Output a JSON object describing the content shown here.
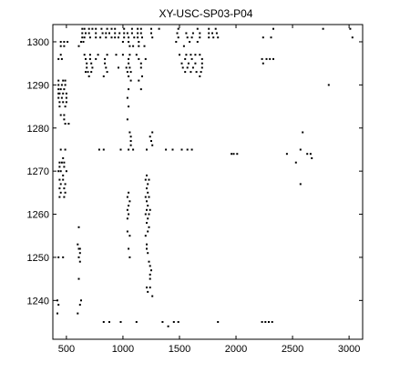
{
  "chart_data": {
    "type": "scatter",
    "title": "XY-USC-SP03-P04",
    "xlabel": "",
    "ylabel": "",
    "xlim": [
      380,
      3120
    ],
    "ylim": [
      1231,
      1304
    ],
    "grid": false,
    "marker_color": "#000000",
    "x_ticks": [
      500,
      1000,
      1500,
      2000,
      2500,
      3000
    ],
    "y_ticks": [
      1240,
      1250,
      1260,
      1270,
      1280,
      1290,
      1300
    ],
    "x_tick_labels": [
      "500",
      "1000",
      "1500",
      "2000",
      "2500",
      "3000"
    ],
    "y_tick_labels": [
      "1240",
      "1250",
      "1260",
      "1270",
      "1280",
      "1290",
      "1300"
    ],
    "points": [
      [
        640,
        1303
      ],
      [
        660,
        1303
      ],
      [
        700,
        1303
      ],
      [
        730,
        1303
      ],
      [
        760,
        1303
      ],
      [
        810,
        1303
      ],
      [
        860,
        1303
      ],
      [
        900,
        1303
      ],
      [
        930,
        1303
      ],
      [
        1010,
        1303
      ],
      [
        1080,
        1303
      ],
      [
        1130,
        1303
      ],
      [
        1160,
        1303
      ],
      [
        1250,
        1303
      ],
      [
        1320,
        1303
      ],
      [
        1490,
        1303
      ],
      [
        1660,
        1303
      ],
      [
        1760,
        1303
      ],
      [
        1820,
        1303
      ],
      [
        2330,
        1303
      ],
      [
        2770,
        1303
      ],
      [
        3010,
        1303
      ],
      [
        640,
        1302
      ],
      [
        670,
        1302
      ],
      [
        700,
        1302
      ],
      [
        760,
        1302
      ],
      [
        820,
        1302
      ],
      [
        850,
        1302
      ],
      [
        880,
        1302
      ],
      [
        930,
        1302
      ],
      [
        970,
        1302
      ],
      [
        1010,
        1302
      ],
      [
        1040,
        1302
      ],
      [
        1080,
        1302
      ],
      [
        1130,
        1302
      ],
      [
        1160,
        1302
      ],
      [
        1250,
        1302
      ],
      [
        1480,
        1302
      ],
      [
        1560,
        1302
      ],
      [
        1620,
        1302
      ],
      [
        1680,
        1302
      ],
      [
        1760,
        1302
      ],
      [
        1790,
        1302
      ],
      [
        1830,
        1302
      ],
      [
        640,
        1301
      ],
      [
        660,
        1301
      ],
      [
        710,
        1301
      ],
      [
        760,
        1301
      ],
      [
        800,
        1301
      ],
      [
        850,
        1301
      ],
      [
        900,
        1301
      ],
      [
        930,
        1301
      ],
      [
        960,
        1301
      ],
      [
        1010,
        1301
      ],
      [
        1050,
        1301
      ],
      [
        1100,
        1301
      ],
      [
        1130,
        1301
      ],
      [
        1170,
        1301
      ],
      [
        1260,
        1301
      ],
      [
        1490,
        1301
      ],
      [
        1570,
        1301
      ],
      [
        1610,
        1301
      ],
      [
        1680,
        1301
      ],
      [
        1760,
        1301
      ],
      [
        1800,
        1301
      ],
      [
        1840,
        1301
      ],
      [
        2240,
        1301
      ],
      [
        2310,
        1301
      ],
      [
        3030,
        1301
      ],
      [
        450,
        1300
      ],
      [
        480,
        1300
      ],
      [
        510,
        1300
      ],
      [
        630,
        1300
      ],
      [
        650,
        1300
      ],
      [
        1000,
        1300
      ],
      [
        1050,
        1300
      ],
      [
        1140,
        1300
      ],
      [
        1470,
        1300
      ],
      [
        1590,
        1300
      ],
      [
        1660,
        1300
      ],
      [
        450,
        1299
      ],
      [
        480,
        1299
      ],
      [
        610,
        1299
      ],
      [
        1060,
        1299
      ],
      [
        1090,
        1299
      ],
      [
        1140,
        1299
      ],
      [
        1190,
        1299
      ],
      [
        1540,
        1299
      ],
      [
        450,
        1297
      ],
      [
        660,
        1297
      ],
      [
        710,
        1297
      ],
      [
        780,
        1297
      ],
      [
        860,
        1297
      ],
      [
        940,
        1297
      ],
      [
        1000,
        1297
      ],
      [
        1060,
        1297
      ],
      [
        1120,
        1297
      ],
      [
        1500,
        1297
      ],
      [
        1560,
        1297
      ],
      [
        1600,
        1297
      ],
      [
        1640,
        1297
      ],
      [
        1680,
        1297
      ],
      [
        430,
        1296
      ],
      [
        460,
        1296
      ],
      [
        670,
        1296
      ],
      [
        710,
        1296
      ],
      [
        760,
        1296
      ],
      [
        840,
        1296
      ],
      [
        1050,
        1296
      ],
      [
        1140,
        1296
      ],
      [
        1200,
        1296
      ],
      [
        1550,
        1296
      ],
      [
        1610,
        1296
      ],
      [
        1700,
        1296
      ],
      [
        2230,
        1296
      ],
      [
        2270,
        1296
      ],
      [
        2300,
        1296
      ],
      [
        2330,
        1296
      ],
      [
        680,
        1295
      ],
      [
        720,
        1295
      ],
      [
        840,
        1295
      ],
      [
        1050,
        1295
      ],
      [
        1160,
        1295
      ],
      [
        1520,
        1295
      ],
      [
        1580,
        1295
      ],
      [
        1640,
        1295
      ],
      [
        1700,
        1295
      ],
      [
        2240,
        1295
      ],
      [
        680,
        1294
      ],
      [
        730,
        1294
      ],
      [
        850,
        1294
      ],
      [
        960,
        1294
      ],
      [
        1030,
        1294
      ],
      [
        1060,
        1294
      ],
      [
        1160,
        1294
      ],
      [
        1530,
        1294
      ],
      [
        1570,
        1294
      ],
      [
        1620,
        1294
      ],
      [
        1700,
        1294
      ],
      [
        670,
        1293
      ],
      [
        690,
        1293
      ],
      [
        720,
        1293
      ],
      [
        860,
        1293
      ],
      [
        1040,
        1293
      ],
      [
        1070,
        1293
      ],
      [
        1550,
        1293
      ],
      [
        1600,
        1293
      ],
      [
        1650,
        1293
      ],
      [
        1690,
        1293
      ],
      [
        700,
        1292
      ],
      [
        830,
        1292
      ],
      [
        1050,
        1292
      ],
      [
        1170,
        1292
      ],
      [
        1680,
        1292
      ],
      [
        430,
        1291
      ],
      [
        470,
        1291
      ],
      [
        490,
        1291
      ],
      [
        1070,
        1291
      ],
      [
        1140,
        1291
      ],
      [
        430,
        1290
      ],
      [
        460,
        1290
      ],
      [
        490,
        1290
      ],
      [
        2820,
        1290
      ],
      [
        430,
        1289
      ],
      [
        450,
        1289
      ],
      [
        480,
        1289
      ],
      [
        1050,
        1289
      ],
      [
        1160,
        1289
      ],
      [
        430,
        1288
      ],
      [
        440,
        1288
      ],
      [
        470,
        1288
      ],
      [
        500,
        1288
      ],
      [
        430,
        1287
      ],
      [
        460,
        1287
      ],
      [
        500,
        1287
      ],
      [
        1040,
        1287
      ],
      [
        440,
        1286
      ],
      [
        470,
        1286
      ],
      [
        500,
        1286
      ],
      [
        440,
        1285
      ],
      [
        490,
        1285
      ],
      [
        1050,
        1285
      ],
      [
        450,
        1283
      ],
      [
        480,
        1283
      ],
      [
        480,
        1282
      ],
      [
        1040,
        1282
      ],
      [
        490,
        1281
      ],
      [
        520,
        1281
      ],
      [
        1060,
        1279
      ],
      [
        1260,
        1279
      ],
      [
        2590,
        1279
      ],
      [
        1070,
        1278
      ],
      [
        1240,
        1278
      ],
      [
        1070,
        1277
      ],
      [
        1250,
        1277
      ],
      [
        1070,
        1276
      ],
      [
        1260,
        1276
      ],
      [
        450,
        1275
      ],
      [
        490,
        1275
      ],
      [
        790,
        1275
      ],
      [
        830,
        1275
      ],
      [
        980,
        1275
      ],
      [
        1050,
        1275
      ],
      [
        1090,
        1275
      ],
      [
        1210,
        1275
      ],
      [
        1380,
        1275
      ],
      [
        1440,
        1275
      ],
      [
        1520,
        1275
      ],
      [
        1570,
        1275
      ],
      [
        1610,
        1275
      ],
      [
        2570,
        1275
      ],
      [
        1960,
        1274
      ],
      [
        1980,
        1274
      ],
      [
        2010,
        1274
      ],
      [
        2450,
        1274
      ],
      [
        2630,
        1274
      ],
      [
        2660,
        1274
      ],
      [
        470,
        1273
      ],
      [
        2670,
        1273
      ],
      [
        440,
        1272
      ],
      [
        460,
        1272
      ],
      [
        480,
        1272
      ],
      [
        2530,
        1272
      ],
      [
        440,
        1271
      ],
      [
        480,
        1271
      ],
      [
        430,
        1270
      ],
      [
        450,
        1270
      ],
      [
        500,
        1270
      ],
      [
        470,
        1269
      ],
      [
        1210,
        1269
      ],
      [
        440,
        1268
      ],
      [
        470,
        1268
      ],
      [
        1200,
        1268
      ],
      [
        1230,
        1268
      ],
      [
        450,
        1267
      ],
      [
        490,
        1267
      ],
      [
        1220,
        1267
      ],
      [
        2570,
        1267
      ],
      [
        440,
        1266
      ],
      [
        480,
        1266
      ],
      [
        1210,
        1266
      ],
      [
        450,
        1265
      ],
      [
        490,
        1265
      ],
      [
        1050,
        1265
      ],
      [
        1220,
        1265
      ],
      [
        440,
        1264
      ],
      [
        480,
        1264
      ],
      [
        1040,
        1264
      ],
      [
        1200,
        1264
      ],
      [
        1230,
        1264
      ],
      [
        1060,
        1263
      ],
      [
        1210,
        1263
      ],
      [
        1050,
        1262
      ],
      [
        1220,
        1262
      ],
      [
        1040,
        1261
      ],
      [
        1210,
        1261
      ],
      [
        1240,
        1261
      ],
      [
        1050,
        1260
      ],
      [
        1200,
        1260
      ],
      [
        1230,
        1260
      ],
      [
        1040,
        1259
      ],
      [
        1220,
        1259
      ],
      [
        1210,
        1258
      ],
      [
        610,
        1257
      ],
      [
        1230,
        1257
      ],
      [
        1040,
        1256
      ],
      [
        1220,
        1256
      ],
      [
        1060,
        1255
      ],
      [
        1200,
        1255
      ],
      [
        600,
        1253
      ],
      [
        1210,
        1253
      ],
      [
        610,
        1252
      ],
      [
        620,
        1252
      ],
      [
        1050,
        1252
      ],
      [
        1210,
        1252
      ],
      [
        620,
        1251
      ],
      [
        1220,
        1251
      ],
      [
        430,
        1250
      ],
      [
        470,
        1250
      ],
      [
        610,
        1250
      ],
      [
        1060,
        1250
      ],
      [
        620,
        1249
      ],
      [
        1230,
        1249
      ],
      [
        1240,
        1248
      ],
      [
        1250,
        1247
      ],
      [
        1240,
        1246
      ],
      [
        610,
        1245
      ],
      [
        1240,
        1245
      ],
      [
        1210,
        1243
      ],
      [
        1240,
        1243
      ],
      [
        1220,
        1242
      ],
      [
        1260,
        1241
      ],
      [
        420,
        1240
      ],
      [
        630,
        1240
      ],
      [
        430,
        1239
      ],
      [
        620,
        1239
      ],
      [
        420,
        1237
      ],
      [
        600,
        1237
      ],
      [
        830,
        1235
      ],
      [
        880,
        1235
      ],
      [
        980,
        1235
      ],
      [
        1120,
        1235
      ],
      [
        1350,
        1235
      ],
      [
        1450,
        1235
      ],
      [
        1490,
        1235
      ],
      [
        1840,
        1235
      ],
      [
        2230,
        1235
      ],
      [
        2260,
        1235
      ],
      [
        2290,
        1235
      ],
      [
        2320,
        1235
      ],
      [
        1400,
        1234
      ]
    ]
  }
}
